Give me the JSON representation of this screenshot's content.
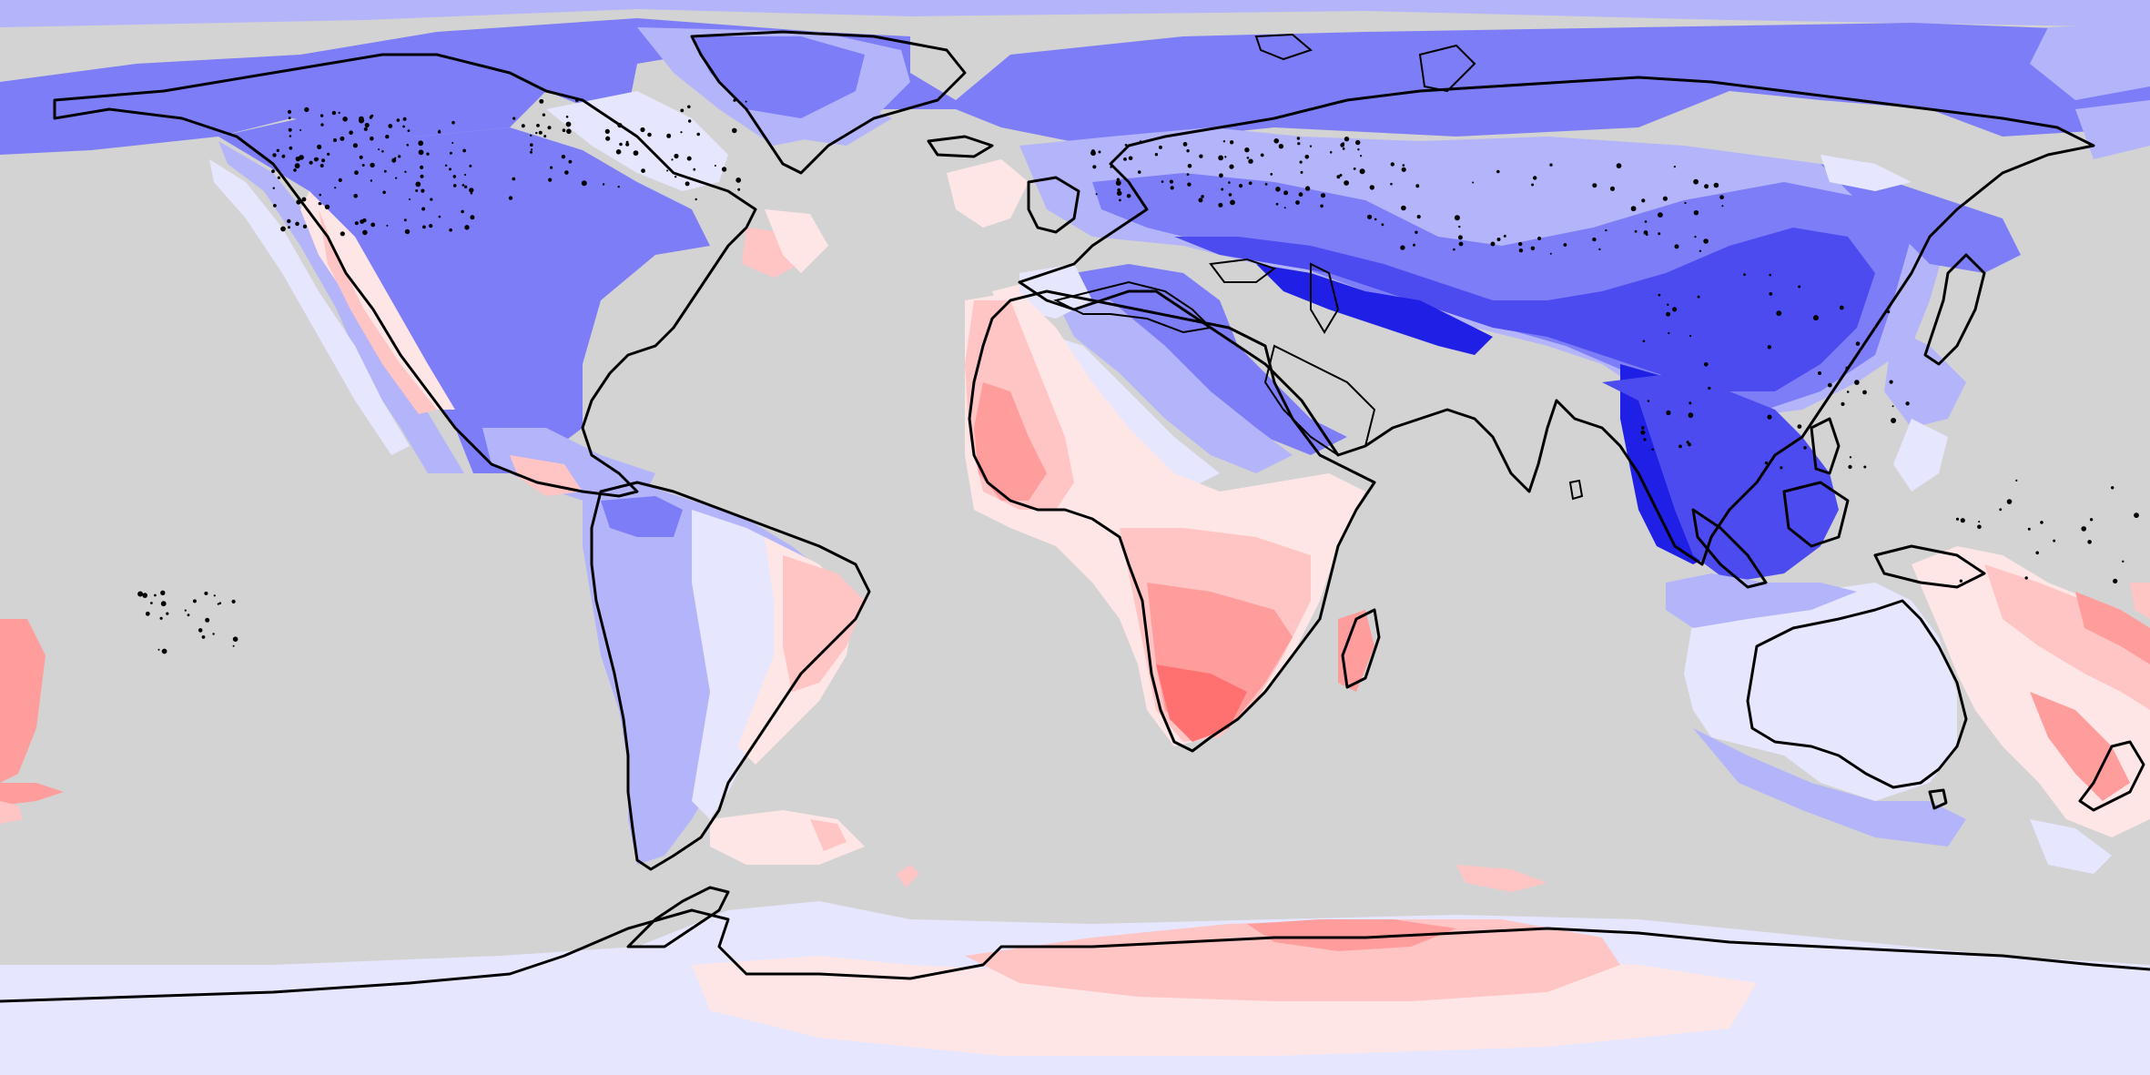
{
  "map": {
    "projection": "equirectangular",
    "background_color": "#d3d3d3",
    "coastline_color": "#000000",
    "anomaly_scale": {
      "neg4": "#1f1fe6",
      "neg3": "#4b4bf0",
      "neg2": "#7d7df7",
      "neg1": "#b4b4fa",
      "neg0": "#e6e6ff",
      "pos0": "#ffe6e6",
      "pos1": "#ffc4c4",
      "pos2": "#ff9d9d",
      "pos3": "#ff7070"
    }
  }
}
